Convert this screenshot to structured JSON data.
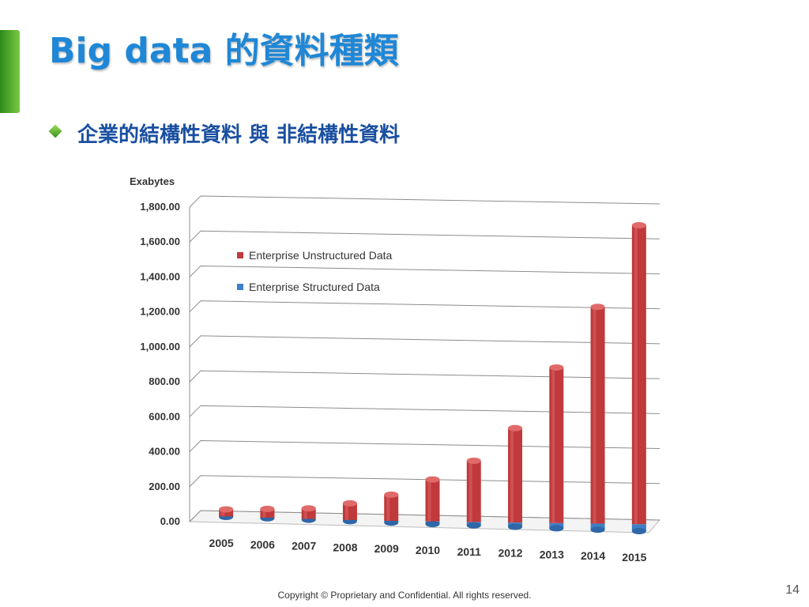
{
  "slide": {
    "title": "Big data 的資料種類",
    "bullet": "企業的結構性資料 與 非結構性資料",
    "footer": "Copyright © Proprietary and Confidential. All rights reserved.",
    "page_number": "14"
  },
  "colors": {
    "title": "#1f87d6",
    "accent_bar": "#4cae2a",
    "unstructured": "#c0393b",
    "structured": "#3f7fc6"
  },
  "chart_data": {
    "type": "bar",
    "title": "",
    "ylabel": "Exabytes",
    "xlabel": "",
    "ylim": [
      0,
      1800
    ],
    "y_ticks": [
      "0.00",
      "200.00",
      "400.00",
      "600.00",
      "800.00",
      "1,000.00",
      "1,200.00",
      "1,400.00",
      "1,600.00",
      "1,800.00"
    ],
    "categories": [
      "2005",
      "2006",
      "2007",
      "2008",
      "2009",
      "2010",
      "2011",
      "2012",
      "2013",
      "2014",
      "2015"
    ],
    "stacked": true,
    "grid": true,
    "legend_position": "top-left",
    "series": [
      {
        "name": "Enterprise Structured Data",
        "values": [
          3,
          4,
          5,
          7,
          10,
          15,
          20,
          25,
          30,
          35,
          40
        ]
      },
      {
        "name": "Enterprise Unstructured Data",
        "values": [
          40,
          50,
          60,
          95,
          150,
          240,
          350,
          540,
          890,
          1240,
          1710
        ]
      }
    ]
  }
}
